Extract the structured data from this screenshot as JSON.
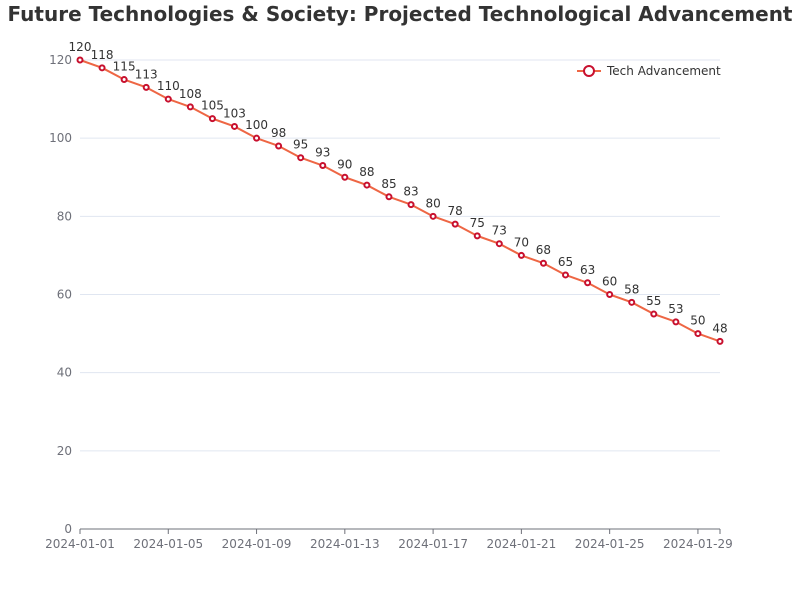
{
  "chart_data": {
    "type": "line",
    "title": "Future Technologies & Society: Projected Technological Advancement",
    "x": [
      "2024-01-01",
      "2024-01-02",
      "2024-01-03",
      "2024-01-04",
      "2024-01-05",
      "2024-01-06",
      "2024-01-07",
      "2024-01-08",
      "2024-01-09",
      "2024-01-10",
      "2024-01-11",
      "2024-01-12",
      "2024-01-13",
      "2024-01-14",
      "2024-01-15",
      "2024-01-16",
      "2024-01-17",
      "2024-01-18",
      "2024-01-19",
      "2024-01-20",
      "2024-01-21",
      "2024-01-22",
      "2024-01-23",
      "2024-01-24",
      "2024-01-25",
      "2024-01-26",
      "2024-01-27",
      "2024-01-28",
      "2024-01-29",
      "2024-01-30"
    ],
    "x_tick_labels": [
      "2024-01-01",
      "2024-01-05",
      "2024-01-09",
      "2024-01-13",
      "2024-01-17",
      "2024-01-21",
      "2024-01-25",
      "2024-01-29"
    ],
    "series": [
      {
        "name": "Tech Advancement",
        "values": [
          120,
          118,
          115,
          113,
          110,
          108,
          105,
          103,
          100,
          98,
          95,
          93,
          90,
          88,
          85,
          83,
          80,
          78,
          75,
          73,
          70,
          68,
          65,
          63,
          60,
          58,
          55,
          53,
          50,
          48
        ],
        "line_color": "#ee6644",
        "marker_color": "#c8102e"
      }
    ],
    "ylim": [
      0,
      120
    ],
    "y_ticks": [
      0,
      20,
      40,
      60,
      80,
      100,
      120
    ],
    "grid": true,
    "legend_position": "top-right",
    "xlabel": "",
    "ylabel": ""
  }
}
